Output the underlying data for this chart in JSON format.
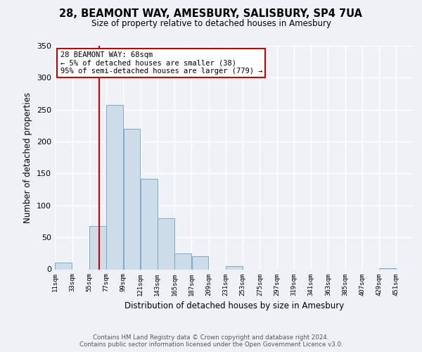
{
  "title": "28, BEAMONT WAY, AMESBURY, SALISBURY, SP4 7UA",
  "subtitle": "Size of property relative to detached houses in Amesbury",
  "xlabel": "Distribution of detached houses by size in Amesbury",
  "ylabel": "Number of detached properties",
  "bar_color": "#ccdce8",
  "bar_edgecolor": "#7aaac8",
  "bin_edges": [
    11,
    33,
    55,
    77,
    99,
    121,
    143,
    165,
    187,
    209,
    231,
    253,
    275,
    297,
    319,
    341,
    363,
    385,
    407,
    429,
    451
  ],
  "bin_counts": [
    10,
    0,
    68,
    257,
    220,
    142,
    80,
    25,
    20,
    0,
    5,
    0,
    0,
    0,
    0,
    0,
    0,
    0,
    0,
    2
  ],
  "tick_labels": [
    "11sqm",
    "33sqm",
    "55sqm",
    "77sqm",
    "99sqm",
    "121sqm",
    "143sqm",
    "165sqm",
    "187sqm",
    "209sqm",
    "231sqm",
    "253sqm",
    "275sqm",
    "297sqm",
    "319sqm",
    "341sqm",
    "363sqm",
    "385sqm",
    "407sqm",
    "429sqm",
    "451sqm"
  ],
  "ylim": [
    0,
    350
  ],
  "yticks": [
    0,
    50,
    100,
    150,
    200,
    250,
    300,
    350
  ],
  "property_line_x": 68,
  "property_line_color": "#cc0000",
  "annotation_text_line1": "28 BEAMONT WAY: 68sqm",
  "annotation_text_line2": "← 5% of detached houses are smaller (38)",
  "annotation_text_line3": "95% of semi-detached houses are larger (779) →",
  "annotation_box_color": "#cc0000",
  "footer_line1": "Contains HM Land Registry data © Crown copyright and database right 2024.",
  "footer_line2": "Contains public sector information licensed under the Open Government Licence v3.0.",
  "background_color": "#eef2f7",
  "grid_color": "#ffffff"
}
